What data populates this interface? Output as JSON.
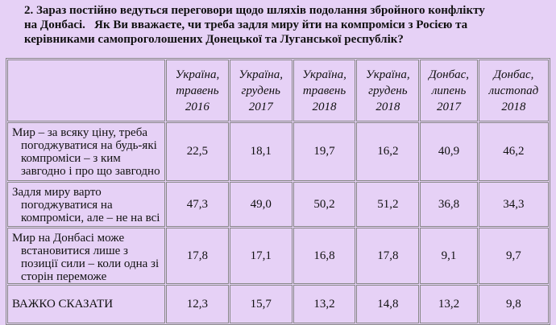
{
  "title_lines": [
    "2. Зараз постійно ведуться переговори щодо шляхів подолання збройного конфлікту",
    "на Донбасі.   Як Ви вважаєте, чи треба задля миру йти на компроміси з Росією та",
    "керівниками самопроголошених Донецької та Луганської республік?"
  ],
  "table": {
    "header": [
      [
        "Україна,",
        "травень",
        "2016"
      ],
      [
        "Україна,",
        "грудень",
        "2017"
      ],
      [
        "Україна,",
        "травень",
        "2018"
      ],
      [
        "Україна,",
        "грудень",
        "2018"
      ],
      [
        "Донбас,",
        "липень",
        "2017"
      ],
      [
        "Донбас,",
        "листопад",
        "2018"
      ]
    ],
    "rows": [
      {
        "label": "Мир – за всяку ціну, треба погоджуватися на будь-які компроміси – з ким завгодно і про що завгодно",
        "values": [
          "22,5",
          "18,1",
          "19,7",
          "16,2",
          "40,9",
          "46,2"
        ]
      },
      {
        "label": "Задля миру варто погоджуватися на компроміси, але – не на всі",
        "values": [
          "47,3",
          "49,0",
          "50,2",
          "51,2",
          "36,8",
          "34,3"
        ]
      },
      {
        "label": "Мир на Донбасі може встановитися лише з позиції сили – коли одна зі сторін переможе",
        "values": [
          "17,8",
          "17,1",
          "16,8",
          "17,8",
          "9,1",
          "9,7"
        ]
      },
      {
        "label": "ВАЖКО СКАЗАТИ",
        "values": [
          "12,3",
          "15,7",
          "13,2",
          "14,8",
          "13,2",
          "9,8"
        ]
      }
    ]
  }
}
